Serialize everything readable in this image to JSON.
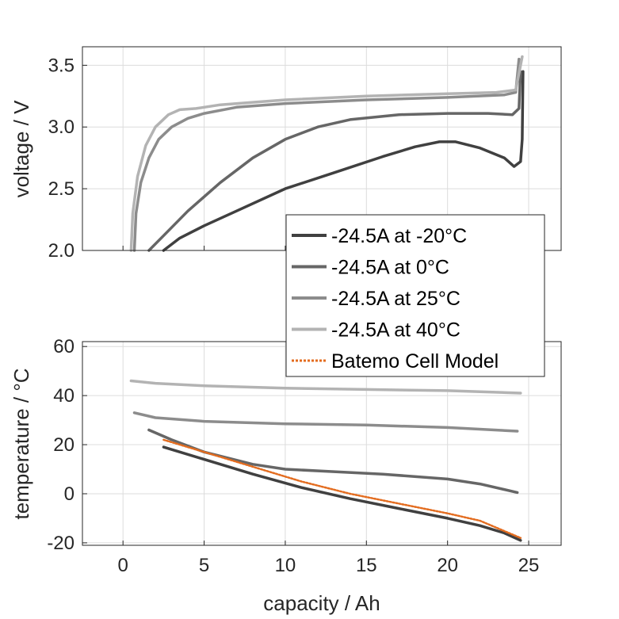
{
  "chart_data": [
    {
      "type": "line",
      "panel": "voltage",
      "xlabel": "capacity / Ah",
      "ylabel": "voltage / V",
      "xlim": [
        -2.5,
        27
      ],
      "ylim": [
        2.0,
        3.65
      ],
      "yticks": [
        2.0,
        2.5,
        3.0,
        3.5
      ],
      "ytick_labels": [
        "2.0",
        "2.5",
        "3.0",
        "3.5"
      ],
      "grid": true,
      "series": [
        {
          "name": "-24.5A at -20°C",
          "color": "#404040",
          "points": [
            [
              2.5,
              2.0
            ],
            [
              3.5,
              2.1
            ],
            [
              5,
              2.2
            ],
            [
              7,
              2.32
            ],
            [
              10,
              2.5
            ],
            [
              13,
              2.63
            ],
            [
              16,
              2.76
            ],
            [
              18,
              2.84
            ],
            [
              19.5,
              2.88
            ],
            [
              20.5,
              2.88
            ],
            [
              22,
              2.83
            ],
            [
              23.5,
              2.75
            ],
            [
              24.1,
              2.68
            ],
            [
              24.5,
              2.72
            ],
            [
              24.6,
              2.9
            ],
            [
              24.65,
              3.45
            ]
          ]
        },
        {
          "name": "-24.5A at 0°C",
          "color": "#666666",
          "points": [
            [
              1.6,
              2.0
            ],
            [
              2.5,
              2.12
            ],
            [
              4,
              2.32
            ],
            [
              6,
              2.55
            ],
            [
              8,
              2.75
            ],
            [
              10,
              2.9
            ],
            [
              12,
              3.0
            ],
            [
              14,
              3.06
            ],
            [
              17,
              3.1
            ],
            [
              20,
              3.11
            ],
            [
              22.5,
              3.11
            ],
            [
              24,
              3.1
            ],
            [
              24.4,
              3.15
            ],
            [
              24.5,
              3.45
            ]
          ]
        },
        {
          "name": "-24.5A at 25°C",
          "color": "#8c8c8c",
          "points": [
            [
              0.7,
              2.0
            ],
            [
              0.8,
              2.3
            ],
            [
              1.1,
              2.55
            ],
            [
              1.6,
              2.75
            ],
            [
              2.2,
              2.9
            ],
            [
              3,
              3.0
            ],
            [
              4,
              3.07
            ],
            [
              5,
              3.11
            ],
            [
              7,
              3.16
            ],
            [
              10,
              3.19
            ],
            [
              15,
              3.22
            ],
            [
              20,
              3.24
            ],
            [
              23.5,
              3.26
            ],
            [
              24.2,
              3.28
            ],
            [
              24.4,
              3.55
            ]
          ]
        },
        {
          "name": "-24.5A at 40°C",
          "color": "#b3b3b3",
          "points": [
            [
              0.5,
              2.0
            ],
            [
              0.6,
              2.3
            ],
            [
              0.9,
              2.6
            ],
            [
              1.4,
              2.85
            ],
            [
              2.0,
              3.0
            ],
            [
              2.8,
              3.1
            ],
            [
              3.5,
              3.14
            ],
            [
              4.5,
              3.15
            ],
            [
              6,
              3.18
            ],
            [
              10,
              3.22
            ],
            [
              15,
              3.25
            ],
            [
              20,
              3.27
            ],
            [
              23,
              3.28
            ],
            [
              24.2,
              3.3
            ],
            [
              24.6,
              3.57
            ]
          ]
        }
      ]
    },
    {
      "type": "line",
      "panel": "temperature",
      "xlabel": "capacity / Ah",
      "ylabel": "temperature / °C",
      "xlim": [
        -2.5,
        27
      ],
      "ylim": [
        -21,
        62
      ],
      "xticks": [
        0,
        5,
        10,
        15,
        20,
        25
      ],
      "xtick_labels": [
        "0",
        "5",
        "10",
        "15",
        "20",
        "25"
      ],
      "yticks": [
        -20,
        0,
        20,
        40,
        60
      ],
      "ytick_labels": [
        "-20",
        "0",
        "20",
        "40",
        "60"
      ],
      "grid": true,
      "series": [
        {
          "name": "-24.5A at -20°C",
          "color": "#404040",
          "points": [
            [
              2.5,
              19
            ],
            [
              5,
              14
            ],
            [
              8,
              8
            ],
            [
              11,
              2.5
            ],
            [
              14,
              -2
            ],
            [
              17,
              -6
            ],
            [
              20,
              -10
            ],
            [
              22,
              -13
            ],
            [
              23.5,
              -16
            ],
            [
              24.5,
              -19
            ]
          ]
        },
        {
          "name": "-24.5A at 0°C",
          "color": "#666666",
          "points": [
            [
              1.6,
              26
            ],
            [
              3,
              22
            ],
            [
              5,
              17
            ],
            [
              8,
              12
            ],
            [
              10,
              10
            ],
            [
              13,
              9
            ],
            [
              16,
              8
            ],
            [
              20,
              6
            ],
            [
              22,
              4
            ],
            [
              24.3,
              0.5
            ]
          ]
        },
        {
          "name": "-24.5A at 25°C",
          "color": "#8c8c8c",
          "points": [
            [
              0.7,
              33
            ],
            [
              2,
              31
            ],
            [
              5,
              29.5
            ],
            [
              10,
              28.5
            ],
            [
              15,
              28
            ],
            [
              20,
              27
            ],
            [
              24.3,
              25.5
            ]
          ]
        },
        {
          "name": "-24.5A at 40°C",
          "color": "#b3b3b3",
          "points": [
            [
              0.5,
              46
            ],
            [
              2,
              45
            ],
            [
              5,
              44
            ],
            [
              10,
              43
            ],
            [
              15,
              42.5
            ],
            [
              20,
              42
            ],
            [
              24.5,
              41
            ]
          ]
        },
        {
          "name": "Batemo Cell Model",
          "color": "#e36c1f",
          "points": [
            [
              2.5,
              22
            ],
            [
              5,
              17
            ],
            [
              8,
              11
            ],
            [
              11,
              5
            ],
            [
              14,
              0
            ],
            [
              17,
              -4
            ],
            [
              20,
              -8
            ],
            [
              22,
              -11
            ],
            [
              24.5,
              -18
            ]
          ]
        }
      ]
    }
  ],
  "legend": {
    "placement": "center-right",
    "entries": [
      {
        "label": "-24.5A at -20°C",
        "color": "#404040",
        "style": "solid"
      },
      {
        "label": "-24.5A at 0°C",
        "color": "#666666",
        "style": "solid"
      },
      {
        "label": "-24.5A at 25°C",
        "color": "#8c8c8c",
        "style": "solid"
      },
      {
        "label": "-24.5A at 40°C",
        "color": "#b3b3b3",
        "style": "solid"
      },
      {
        "label": "Batemo Cell Model",
        "color": "#e36c1f",
        "style": "dotted"
      }
    ]
  }
}
